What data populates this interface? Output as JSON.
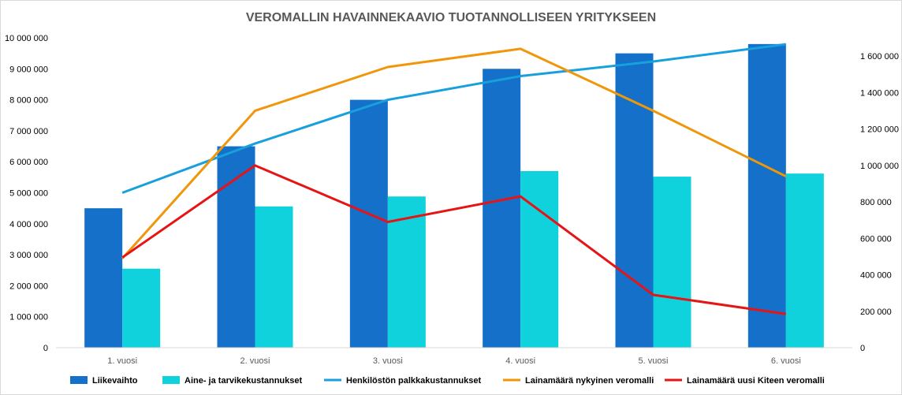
{
  "chart_data": {
    "type": "bar",
    "title": "VEROMALLIN HAVAINNEKAAVIO TUOTANNOLLISEEN YRITYKSEEN",
    "categories": [
      "1. vuosi",
      "2. vuosi",
      "3. vuosi",
      "4. vuosi",
      "5. vuosi",
      "6. vuosi"
    ],
    "ylim": [
      0,
      10000000
    ],
    "y_ticks": [
      "0",
      "1 000 000",
      "2 000 000",
      "3 000 000",
      "4 000 000",
      "5 000 000",
      "6 000 000",
      "7 000 000",
      "8 000 000",
      "9 000 000",
      "10 000 000"
    ],
    "y2lim": [
      0,
      1700000
    ],
    "y2_ticks": [
      "0",
      "200 000",
      "400 000",
      "600 000",
      "800 000",
      "1 000 000",
      "1 200 000",
      "1 400 000",
      "1 600 000"
    ],
    "grid": false,
    "legend_position": "bottom",
    "series": [
      {
        "name": "Liikevaihto",
        "kind": "bar",
        "axis": "left",
        "color": "#1470c8",
        "values": [
          4500000,
          6500000,
          8000000,
          9000000,
          9500000,
          9800000
        ]
      },
      {
        "name": "Aine- ja tarvikekustannukset",
        "kind": "bar",
        "axis": "left",
        "color": "#10d2dc",
        "values": [
          2550000,
          4560000,
          4880000,
          5700000,
          5520000,
          5620000
        ]
      },
      {
        "name": "Henkilöstön palkkakustannukset",
        "kind": "line",
        "axis": "right",
        "color": "#18a0dc",
        "values": [
          850000,
          1120000,
          1360000,
          1490000,
          1570000,
          1665000
        ]
      },
      {
        "name": "Lainamäärä nykyinen veromalli",
        "kind": "line",
        "axis": "right",
        "color": "#f0960a",
        "values": [
          490000,
          1300000,
          1540000,
          1640000,
          1300000,
          940000
        ]
      },
      {
        "name": "Lainamäärä uusi Kiteen veromalli",
        "kind": "line",
        "axis": "right",
        "color": "#e61414",
        "values": [
          495000,
          1000000,
          690000,
          830000,
          290000,
          185000
        ]
      }
    ]
  }
}
